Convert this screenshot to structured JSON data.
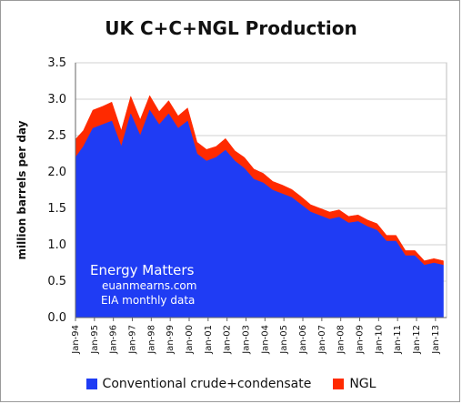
{
  "chart_data": {
    "type": "area",
    "title": "UK C+C+NGL Production",
    "xlabel": "",
    "ylabel": "million barrels per day",
    "ylim": [
      0,
      3.5
    ],
    "yticks": [
      "0.0",
      "0.5",
      "1.0",
      "1.5",
      "2.0",
      "2.5",
      "3.0",
      "3.5"
    ],
    "xticks": [
      "Jan-94",
      "Jan-95",
      "Jan-96",
      "Jan-97",
      "Jan-98",
      "Jan-99",
      "Jan-00",
      "Jan-01",
      "Jan-02",
      "Jan-03",
      "Jan-04",
      "Jan-05",
      "Jan-06",
      "Jan-07",
      "Jan-08",
      "Jan-09",
      "Jan-10",
      "Jan-11",
      "Jan-12",
      "Jan-13"
    ],
    "grid": true,
    "legend_position": "bottom",
    "stacked": true,
    "series": [
      {
        "name": "Conventional crude+condensate",
        "color": "#1f3cf4",
        "x": [
          "1994-01",
          "1994-06",
          "1994-12",
          "1995-06",
          "1995-12",
          "1996-06",
          "1996-12",
          "1997-06",
          "1997-12",
          "1998-06",
          "1998-12",
          "1999-06",
          "1999-12",
          "2000-06",
          "2000-12",
          "2001-06",
          "2001-12",
          "2002-06",
          "2002-12",
          "2003-06",
          "2003-12",
          "2004-06",
          "2004-12",
          "2005-06",
          "2005-12",
          "2006-06",
          "2006-12",
          "2007-06",
          "2007-12",
          "2008-06",
          "2008-12",
          "2009-06",
          "2009-12",
          "2010-06",
          "2010-12",
          "2011-06",
          "2011-12",
          "2012-06",
          "2012-12",
          "2013-06"
        ],
        "values": [
          2.2,
          2.35,
          2.6,
          2.65,
          2.7,
          2.35,
          2.8,
          2.5,
          2.85,
          2.65,
          2.8,
          2.6,
          2.7,
          2.25,
          2.15,
          2.2,
          2.3,
          2.15,
          2.05,
          1.9,
          1.85,
          1.75,
          1.7,
          1.65,
          1.55,
          1.45,
          1.4,
          1.35,
          1.38,
          1.3,
          1.32,
          1.25,
          1.2,
          1.05,
          1.05,
          0.85,
          0.85,
          0.72,
          0.75,
          0.72
        ]
      },
      {
        "name": "NGL",
        "color": "#ff2a00",
        "x": [
          "1994-01",
          "1994-06",
          "1994-12",
          "1995-06",
          "1995-12",
          "1996-06",
          "1996-12",
          "1997-06",
          "1997-12",
          "1998-06",
          "1998-12",
          "1999-06",
          "1999-12",
          "2000-06",
          "2000-12",
          "2001-06",
          "2001-12",
          "2002-06",
          "2002-12",
          "2003-06",
          "2003-12",
          "2004-06",
          "2004-12",
          "2005-06",
          "2005-12",
          "2006-06",
          "2006-12",
          "2007-06",
          "2007-12",
          "2008-06",
          "2008-12",
          "2009-06",
          "2009-12",
          "2010-06",
          "2010-12",
          "2011-06",
          "2011-12",
          "2012-06",
          "2012-12",
          "2013-06"
        ],
        "values": [
          0.25,
          0.22,
          0.25,
          0.25,
          0.26,
          0.22,
          0.24,
          0.22,
          0.2,
          0.18,
          0.18,
          0.17,
          0.18,
          0.16,
          0.16,
          0.15,
          0.16,
          0.14,
          0.15,
          0.14,
          0.13,
          0.12,
          0.12,
          0.11,
          0.11,
          0.1,
          0.1,
          0.1,
          0.1,
          0.09,
          0.09,
          0.09,
          0.09,
          0.08,
          0.08,
          0.07,
          0.07,
          0.06,
          0.06,
          0.06
        ]
      }
    ],
    "annotations": [
      "Energy Matters",
      "euanmearns.com",
      "EIA monthly data"
    ]
  }
}
